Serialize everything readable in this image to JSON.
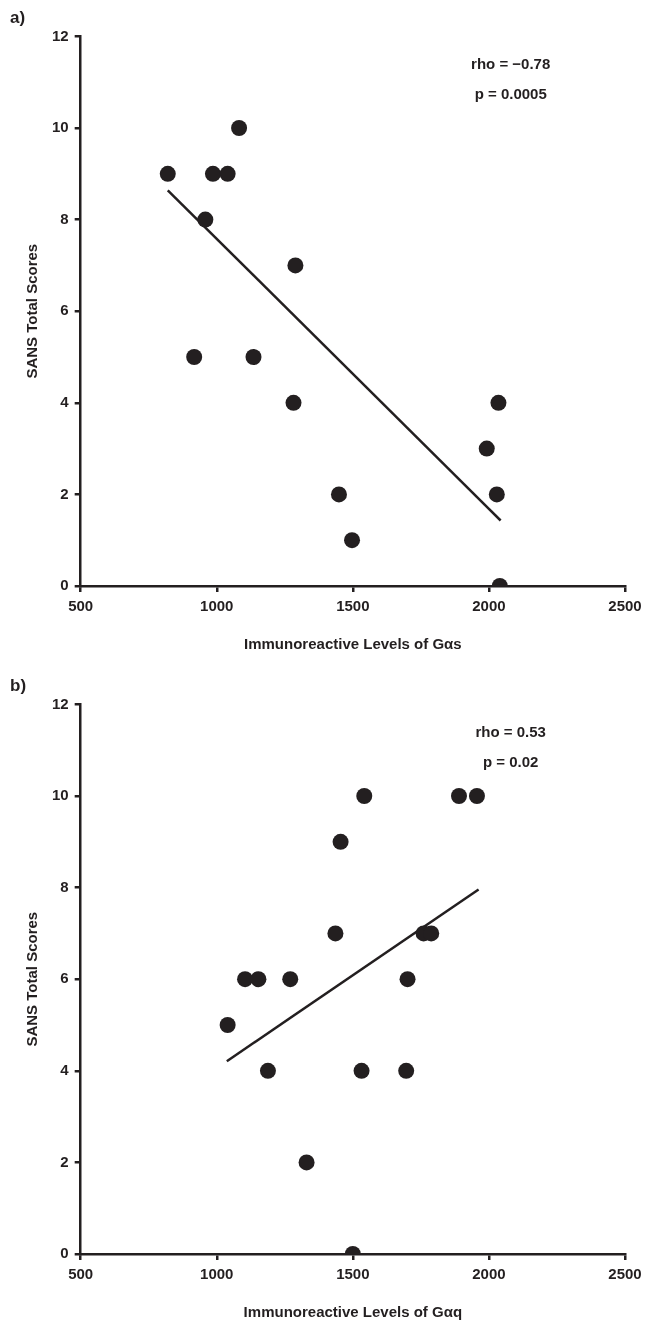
{
  "chart_data": [
    {
      "type": "scatter",
      "title": "a)",
      "xlabel": "Immunoreactive Levels of Gαs",
      "ylabel": "SANS Total Scores",
      "annotations": [
        "rho = −0.78",
        "p = 0.0005"
      ],
      "xlim": [
        500,
        2500
      ],
      "xticks": [
        500,
        1000,
        1500,
        2000,
        2500
      ],
      "ylim": [
        0,
        12
      ],
      "yticks": [
        0,
        2,
        4,
        6,
        8,
        10,
        12
      ],
      "grid": false,
      "legend": false,
      "series": [
        {
          "marker": "circle",
          "color": "#231f20",
          "x": [
            820,
            958,
            917,
            986,
            1040,
            1082,
            1135,
            1289,
            1282,
            1449,
            1497,
            1992,
            2035,
            2029,
            2040
          ],
          "values": [
            9,
            8,
            5,
            9,
            9,
            10,
            5,
            7,
            4,
            2,
            1,
            3,
            4,
            2,
            0
          ]
        },
        {
          "type": "line",
          "marker": "none",
          "color": "#231f20",
          "line_style": "solid",
          "x": [
            820,
            2043
          ],
          "values": [
            8.64,
            1.43
          ]
        }
      ]
    },
    {
      "type": "scatter",
      "title": "b)",
      "xlabel": "Immunoreactive Levels of Gαq",
      "ylabel": "SANS Total Scores",
      "annotations": [
        "rho = 0.53",
        "p = 0.02"
      ],
      "xlim": [
        500,
        2500
      ],
      "xticks": [
        500,
        1000,
        1500,
        2000,
        2500
      ],
      "ylim": [
        0,
        12
      ],
      "yticks": [
        0,
        2,
        4,
        6,
        8,
        10,
        12
      ],
      "grid": false,
      "legend": false,
      "series": [
        {
          "marker": "circle",
          "color": "#231f20",
          "x": [
            1040,
            1104,
            1153,
            1270,
            1188,
            1330,
            1436,
            1455,
            1542,
            1532,
            1500,
            1701,
            1696,
            1760,
            1788,
            1890,
            1956
          ],
          "values": [
            5,
            6,
            6,
            6,
            4,
            2,
            7,
            9,
            10,
            4,
            0,
            6,
            4,
            7,
            7,
            10,
            10
          ]
        },
        {
          "type": "line",
          "marker": "none",
          "color": "#231f20",
          "line_style": "solid",
          "x": [
            1037,
            1962
          ],
          "values": [
            4.21,
            7.96
          ]
        }
      ]
    }
  ]
}
